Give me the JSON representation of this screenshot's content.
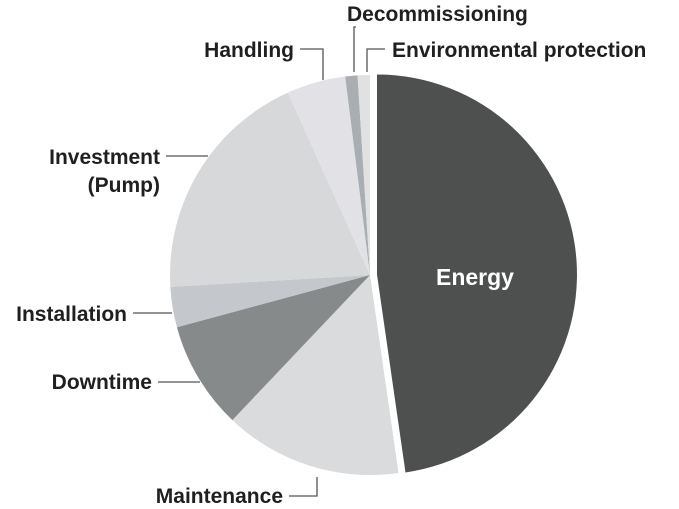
{
  "chart_data": {
    "type": "pie",
    "slices": [
      {
        "label": "Energy",
        "value": 48.2,
        "color": "#4d504f"
      },
      {
        "label": "Maintenance",
        "value": 14.5,
        "color": "#dadbdd"
      },
      {
        "label": "Downtime",
        "value": 8.8,
        "color": "#878a8b"
      },
      {
        "label": "Installation",
        "value": 3.3,
        "color": "#c4c7cb"
      },
      {
        "label": "Investment (Pump)",
        "value": 19.4,
        "color": "#d7d8da"
      },
      {
        "label": "Handling",
        "value": 4.8,
        "color": "#e2e2e6"
      },
      {
        "label": "Decommissioning",
        "value": 1.0,
        "color": "#a9aeb2"
      },
      {
        "label": "Environmental protection",
        "value": 1.0,
        "color": "#e1e1e1"
      }
    ],
    "label_lines": {
      "Investment (Pump)": [
        "Investment",
        "(Pump)"
      ]
    },
    "exploded": "Energy",
    "legend": "none"
  }
}
